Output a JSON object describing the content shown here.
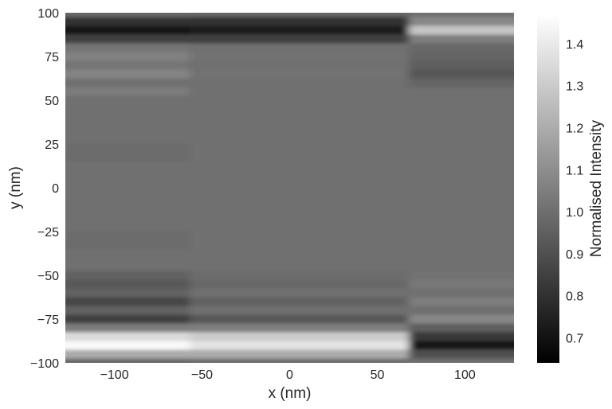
{
  "chart_data": {
    "type": "heatmap",
    "title": "",
    "xlabel": "x (nm)",
    "ylabel": "y (nm)",
    "colorbar_label": "Normalised Intensity",
    "xlim": [
      -128,
      128
    ],
    "ylim": [
      -100,
      100
    ],
    "x_ticks": [
      -100,
      -50,
      0,
      50,
      100
    ],
    "x_tick_labels": [
      "−100",
      "−50",
      "0",
      "50",
      "100"
    ],
    "y_ticks": [
      100,
      75,
      50,
      25,
      0,
      -25,
      -50,
      -75,
      -100
    ],
    "y_tick_labels": [
      "100",
      "75",
      "50",
      "25",
      "0",
      "−25",
      "−50",
      "−75",
      "−100"
    ],
    "colorbar_range": [
      0.64,
      1.47
    ],
    "colorbar_ticks": [
      1.4,
      1.3,
      1.2,
      1.1,
      1.0,
      0.9,
      0.8,
      0.7
    ],
    "colorbar_tick_labels": [
      "1.4",
      "1.3",
      "1.2",
      "1.1",
      "1.0",
      "0.9",
      "0.8",
      "0.7"
    ],
    "colormap": "gray",
    "grid": false,
    "background_value": 1.0,
    "y_samples": [
      100,
      95,
      90,
      85,
      80,
      75,
      70,
      65,
      60,
      55,
      50,
      45,
      40,
      30,
      20,
      10,
      0,
      -10,
      -20,
      -30,
      -40,
      -45,
      -50,
      -55,
      -60,
      -65,
      -70,
      -75,
      -80,
      -85,
      -90,
      -95,
      -100
    ],
    "x_segments": [
      {
        "name": "left",
        "x_range": [
          -128,
          -57
        ],
        "values": [
          0.98,
          0.8,
          0.7,
          0.85,
          1.02,
          1.06,
          1.02,
          1.07,
          1.0,
          1.04,
          1.0,
          1.0,
          1.0,
          1.0,
          0.99,
          1.0,
          1.0,
          1.0,
          1.0,
          0.99,
          1.0,
          1.0,
          0.96,
          0.93,
          0.96,
          0.87,
          0.96,
          0.85,
          1.04,
          1.35,
          1.45,
          1.2,
          0.98
        ]
      },
      {
        "name": "center",
        "x_range": [
          -57,
          68
        ],
        "values": [
          0.97,
          0.8,
          0.74,
          0.85,
          1.0,
          1.01,
          1.0,
          1.01,
          1.0,
          1.0,
          1.0,
          1.0,
          1.0,
          1.0,
          1.0,
          1.0,
          1.0,
          1.0,
          1.0,
          1.0,
          1.0,
          1.0,
          0.99,
          0.98,
          1.0,
          0.96,
          1.0,
          0.93,
          1.05,
          1.3,
          1.38,
          1.2,
          0.99
        ]
      },
      {
        "name": "right",
        "x_range": [
          68,
          128
        ],
        "values": [
          1.0,
          1.08,
          1.28,
          1.05,
          0.98,
          0.97,
          0.95,
          0.92,
          0.97,
          1.0,
          1.0,
          1.0,
          1.0,
          1.0,
          1.0,
          1.0,
          1.0,
          1.0,
          1.0,
          1.0,
          1.0,
          1.0,
          1.01,
          1.03,
          1.0,
          1.05,
          1.0,
          1.08,
          0.95,
          0.82,
          0.72,
          0.9,
          1.0
        ]
      }
    ]
  }
}
